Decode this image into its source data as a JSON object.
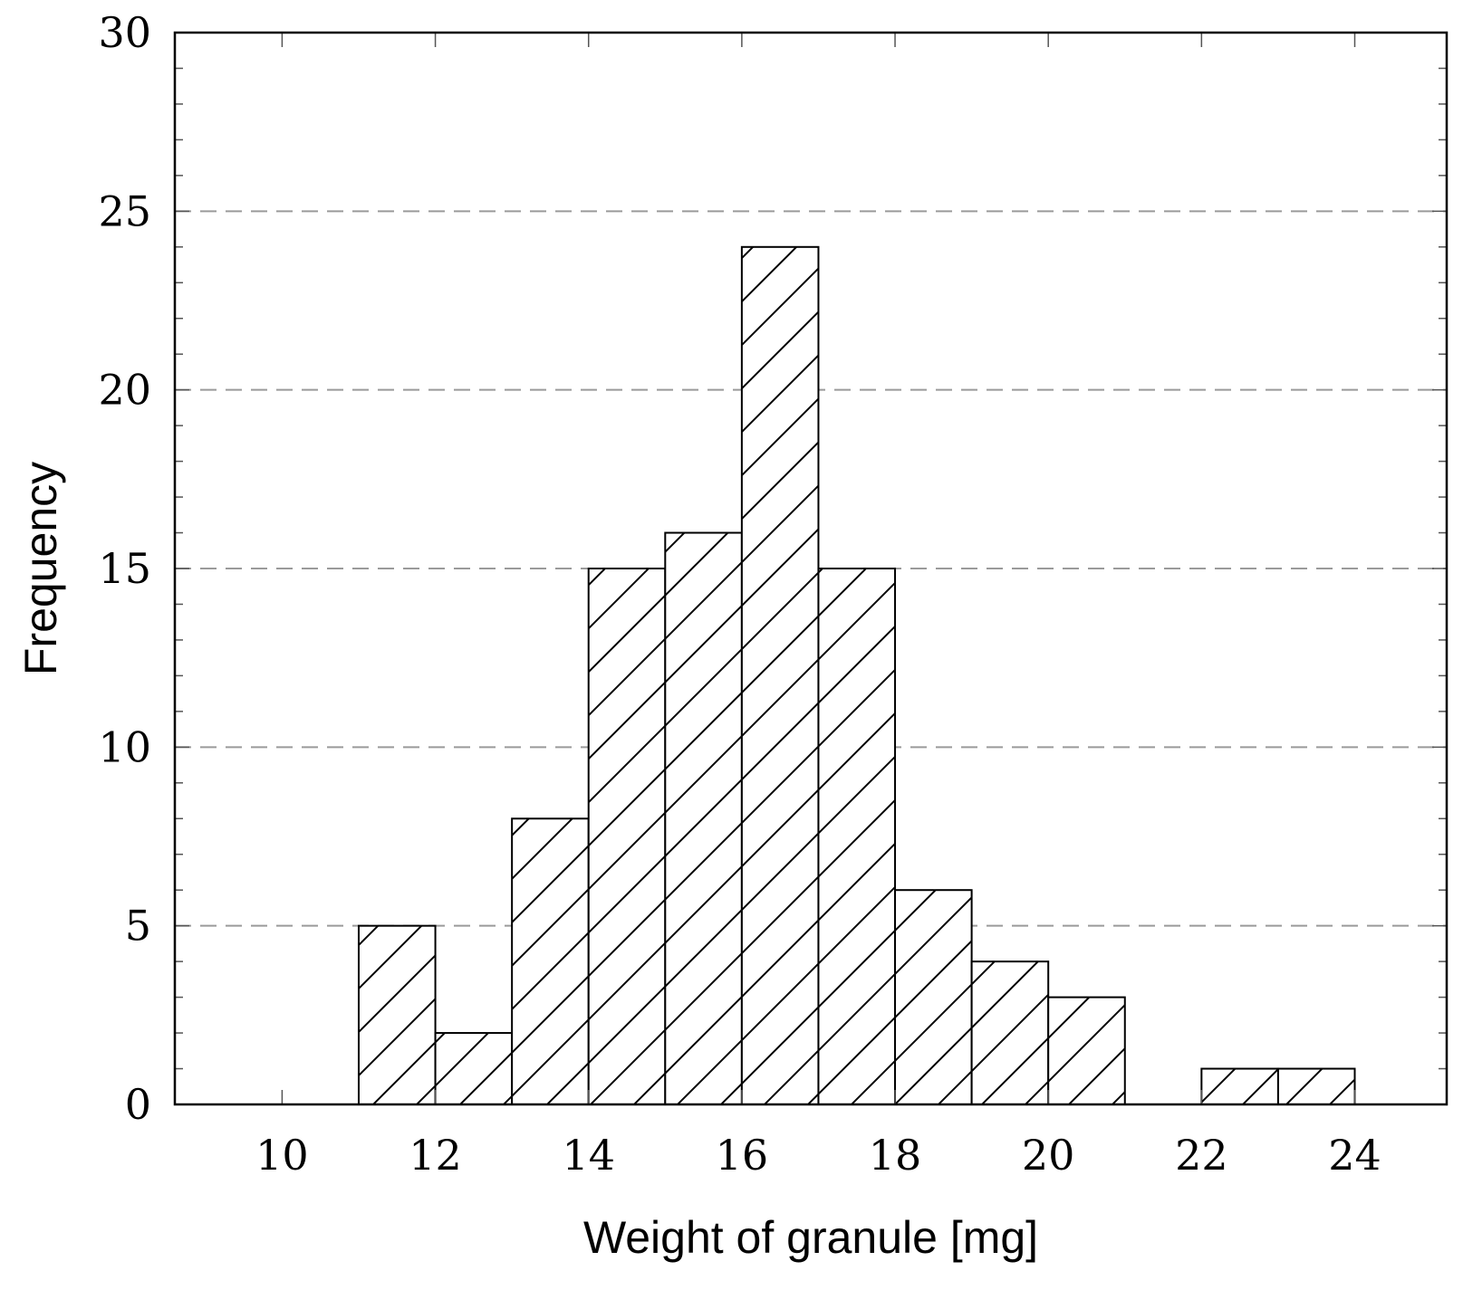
{
  "chart_data": {
    "type": "bar",
    "subtype": "histogram",
    "title": "",
    "xlabel": "Weight of granule [mg]",
    "ylabel": "Frequency",
    "xlim": [
      8.6,
      25.2
    ],
    "ylim": [
      0,
      30
    ],
    "x_ticks": [
      10,
      12,
      14,
      16,
      18,
      20,
      22,
      24
    ],
    "y_ticks": [
      0,
      5,
      10,
      15,
      20,
      25,
      30
    ],
    "y_minor_step": 1,
    "grid": "horizontal dashed at major y ticks",
    "fill_pattern": "diagonal hatch",
    "bins": [
      {
        "from": 11,
        "to": 12,
        "count": 5
      },
      {
        "from": 12,
        "to": 13,
        "count": 2
      },
      {
        "from": 13,
        "to": 14,
        "count": 8
      },
      {
        "from": 14,
        "to": 15,
        "count": 15
      },
      {
        "from": 15,
        "to": 16,
        "count": 16
      },
      {
        "from": 16,
        "to": 17,
        "count": 24
      },
      {
        "from": 17,
        "to": 18,
        "count": 15
      },
      {
        "from": 18,
        "to": 19,
        "count": 6
      },
      {
        "from": 19,
        "to": 20,
        "count": 4
      },
      {
        "from": 20,
        "to": 21,
        "count": 3
      },
      {
        "from": 22,
        "to": 23,
        "count": 1
      },
      {
        "from": 23,
        "to": 24,
        "count": 1
      }
    ]
  }
}
